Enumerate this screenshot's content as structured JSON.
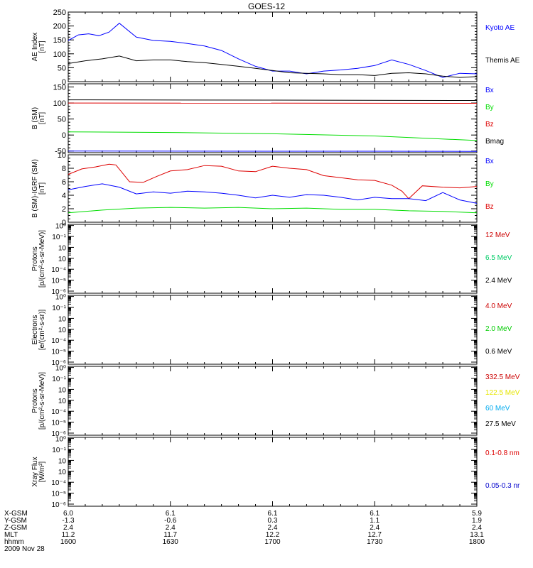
{
  "title": "GOES-12",
  "chart_data": [
    {
      "type": "line",
      "ylabel": [
        "AE Index",
        "[nT]"
      ],
      "ylim": [
        0,
        250
      ],
      "yticks": [
        "0",
        "50",
        "100",
        "150",
        "200",
        "250"
      ],
      "legend": [
        {
          "label": "Kyoto AE",
          "color": "#0000ff"
        },
        {
          "label": "Themis AE",
          "color": "#000000"
        }
      ],
      "series": [
        {
          "name": "Kyoto AE",
          "color": "#0000ff",
          "x": [
            0,
            3,
            6,
            9,
            12,
            15,
            20,
            25,
            30,
            35,
            40,
            45,
            50,
            55,
            60,
            65,
            70,
            75,
            80,
            85,
            90,
            95,
            100,
            105,
            110,
            115,
            120
          ],
          "y": [
            148,
            168,
            172,
            165,
            178,
            210,
            160,
            148,
            145,
            137,
            128,
            112,
            82,
            55,
            38,
            38,
            28,
            38,
            42,
            48,
            58,
            78,
            62,
            40,
            15,
            30,
            28
          ]
        },
        {
          "name": "Themis AE",
          "color": "#000000",
          "x": [
            0,
            5,
            10,
            15,
            20,
            25,
            30,
            35,
            40,
            45,
            50,
            55,
            60,
            65,
            70,
            75,
            80,
            85,
            90,
            95,
            100,
            105,
            110,
            115,
            120
          ],
          "y": [
            65,
            75,
            82,
            92,
            75,
            78,
            78,
            72,
            68,
            62,
            55,
            48,
            40,
            32,
            30,
            28,
            25,
            25,
            22,
            30,
            32,
            28,
            20,
            15,
            18
          ]
        }
      ]
    },
    {
      "type": "line",
      "ylabel": [
        "B (SM)",
        "[nT]"
      ],
      "ylim": [
        -55,
        160
      ],
      "yticks": [
        "-50",
        "0",
        "50",
        "100",
        "150"
      ],
      "legend": [
        {
          "label": "Bx",
          "color": "#0000ff"
        },
        {
          "label": "By",
          "color": "#00dd00"
        },
        {
          "label": "Bz",
          "color": "#dd0000"
        },
        {
          "label": "Bmag",
          "color": "#000000"
        }
      ],
      "series": [
        {
          "name": "Bmag",
          "color": "#000000",
          "x": [
            0,
            120
          ],
          "y": [
            110,
            108
          ]
        },
        {
          "name": "Bz",
          "color": "#dd0000",
          "x": [
            0,
            120
          ],
          "y": [
            100,
            99
          ]
        },
        {
          "name": "By",
          "color": "#00dd00",
          "x": [
            0,
            30,
            60,
            90,
            120
          ],
          "y": [
            10,
            8,
            4,
            -3,
            -17
          ]
        },
        {
          "name": "Bx",
          "color": "#0000ff",
          "x": [
            0,
            120
          ],
          "y": [
            -50,
            -51
          ]
        }
      ]
    },
    {
      "type": "line",
      "ylabel": [
        "B (SM)-IGRF (SM)",
        "[nT]"
      ],
      "ylim": [
        0,
        10
      ],
      "yticks": [
        "0",
        "2",
        "4",
        "6",
        "8",
        "10"
      ],
      "legend": [
        {
          "label": "Bx",
          "color": "#0000ff"
        },
        {
          "label": "By",
          "color": "#00dd00"
        },
        {
          "label": "Bz",
          "color": "#dd0000"
        }
      ],
      "series": [
        {
          "name": "Bz",
          "color": "#dd0000",
          "x": [
            0,
            4,
            8,
            12,
            14,
            18,
            22,
            26,
            30,
            35,
            40,
            45,
            50,
            55,
            60,
            65,
            70,
            75,
            80,
            85,
            90,
            95,
            98,
            100,
            104,
            110,
            115,
            120
          ],
          "y": [
            7.1,
            7.9,
            8.2,
            8.6,
            8.5,
            6.0,
            5.9,
            6.8,
            7.6,
            7.8,
            8.4,
            8.3,
            7.6,
            7.5,
            8.3,
            8.0,
            7.8,
            6.9,
            6.6,
            6.3,
            6.2,
            5.5,
            4.6,
            3.5,
            5.4,
            5.2,
            5.1,
            5.3
          ]
        },
        {
          "name": "Bx",
          "color": "#0000ff",
          "x": [
            0,
            5,
            10,
            15,
            20,
            25,
            30,
            35,
            40,
            45,
            50,
            55,
            60,
            65,
            70,
            75,
            80,
            85,
            90,
            95,
            100,
            105,
            110,
            115,
            120
          ],
          "y": [
            4.8,
            5.3,
            5.7,
            5.2,
            4.2,
            4.5,
            4.3,
            4.6,
            4.5,
            4.3,
            4.0,
            3.6,
            4.0,
            3.7,
            4.1,
            4.0,
            3.7,
            3.3,
            3.7,
            3.5,
            3.5,
            3.2,
            4.4,
            3.3,
            2.8
          ]
        },
        {
          "name": "By",
          "color": "#00dd00",
          "x": [
            0,
            10,
            20,
            30,
            40,
            50,
            60,
            70,
            80,
            90,
            100,
            110,
            120
          ],
          "y": [
            1.4,
            1.8,
            2.1,
            2.2,
            2.1,
            2.2,
            2.0,
            2.1,
            1.9,
            1.9,
            1.7,
            1.6,
            1.4
          ]
        }
      ]
    },
    {
      "type": "line",
      "ylabel": [
        "Protons",
        "[p/(cm²-s-sr-MeV)]"
      ],
      "log": true,
      "yticks": [
        "10⁶",
        "10⁵",
        "10⁴",
        "10⁳",
        "10⁲",
        "10¹",
        "10⁰"
      ],
      "yticks_note": "10^-6 to 10^0",
      "legend": [
        {
          "label": "12 MeV",
          "color": "#cc0000"
        },
        {
          "label": "6.5 MeV",
          "color": "#00cc66"
        },
        {
          "label": "2.4 MeV",
          "color": "#000000"
        }
      ],
      "series": []
    },
    {
      "type": "line",
      "ylabel": [
        "Electrons",
        "[e/(cm²-s-sr)]"
      ],
      "log": true,
      "legend": [
        {
          "label": "4.0 MeV",
          "color": "#cc0000"
        },
        {
          "label": "2.0 MeV",
          "color": "#00cc00"
        },
        {
          "label": "0.6 MeV",
          "color": "#000000"
        }
      ],
      "series": []
    },
    {
      "type": "line",
      "ylabel": [
        "Protons",
        "[p/(cm²-s-sr-MeV)]"
      ],
      "log": true,
      "legend": [
        {
          "label": "332.5 MeV",
          "color": "#cc0000"
        },
        {
          "label": "122.5 MeV",
          "color": "#e6e600"
        },
        {
          "label": "60 MeV",
          "color": "#00aaee"
        },
        {
          "label": "27.5 MeV",
          "color": "#000000"
        }
      ],
      "series": []
    },
    {
      "type": "line",
      "ylabel": [
        "Xray Flux",
        "[W/m²]"
      ],
      "log": true,
      "legend": [
        {
          "label": "0.1-0.8 nm",
          "color": "#dd0000"
        },
        {
          "label": "0.05-0.3 nr",
          "color": "#0000cc"
        }
      ],
      "series": []
    }
  ],
  "x_axis": {
    "row_labels": [
      "X-GSM",
      "Y-GSM",
      "Z-GSM",
      "MLT",
      "hhmm"
    ],
    "columns": [
      [
        "6.0",
        "-1.3",
        "2.4",
        "11.2",
        "1600"
      ],
      [
        "6.1",
        "-0.6",
        "2.4",
        "11.7",
        "1630"
      ],
      [
        "6.1",
        "0.3",
        "2.4",
        "12.2",
        "1700"
      ],
      [
        "6.1",
        "1.1",
        "2.4",
        "12.7",
        "1730"
      ],
      [
        "5.9",
        "1.9",
        "2.4",
        "13.1",
        "1800"
      ]
    ],
    "date": "2009 Nov 28"
  },
  "colors": {
    "axis": "#000000",
    "background": "#ffffff"
  }
}
